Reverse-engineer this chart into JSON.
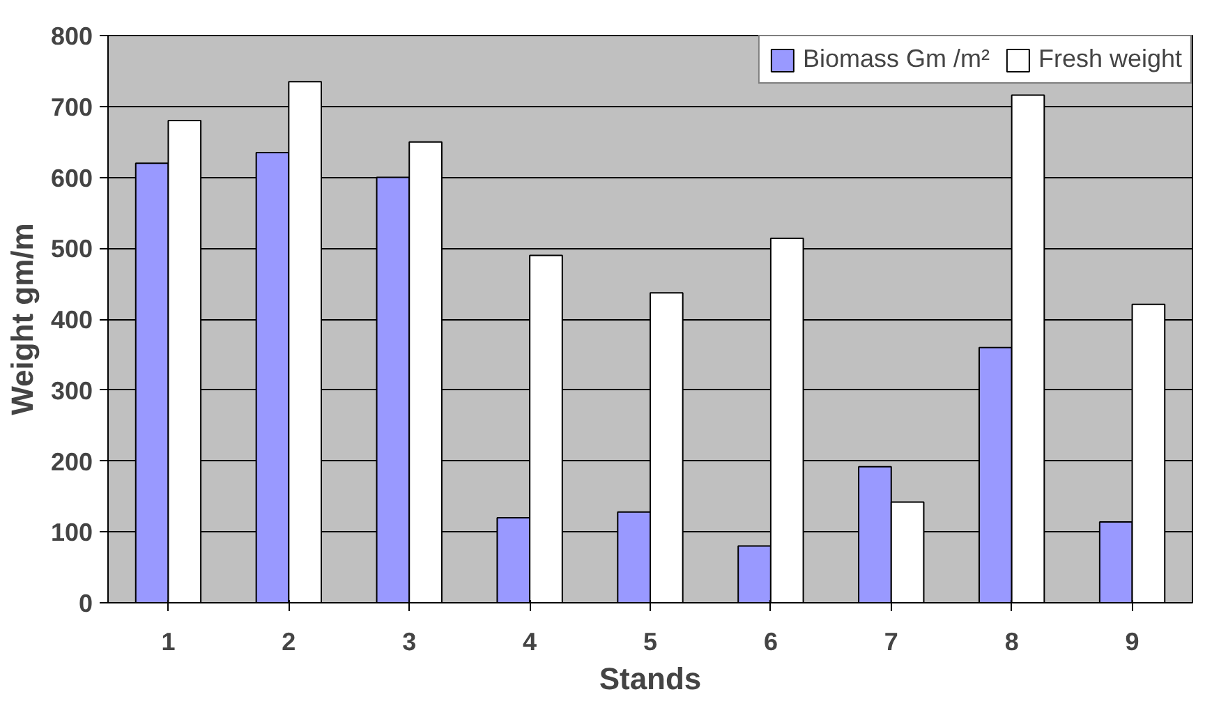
{
  "chart_data": {
    "type": "bar",
    "xlabel": "Stands",
    "ylabel": "Weight gm/m",
    "categories": [
      "1",
      "2",
      "3",
      "4",
      "5",
      "6",
      "7",
      "8",
      "9"
    ],
    "series": [
      {
        "name": "Biomass Gm /m²",
        "color": "#9999ff",
        "values": [
          620,
          635,
          600,
          120,
          128,
          80,
          192,
          360,
          114
        ]
      },
      {
        "name": "Fresh weight",
        "color": "#000000",
        "values": [
          680,
          735,
          650,
          490,
          437,
          514,
          142,
          716,
          421
        ]
      }
    ],
    "ylim": [
      0,
      800
    ],
    "yticks": [
      0,
      100,
      200,
      300,
      400,
      500,
      600,
      700,
      800
    ],
    "grid": "y",
    "legend": "top right"
  }
}
